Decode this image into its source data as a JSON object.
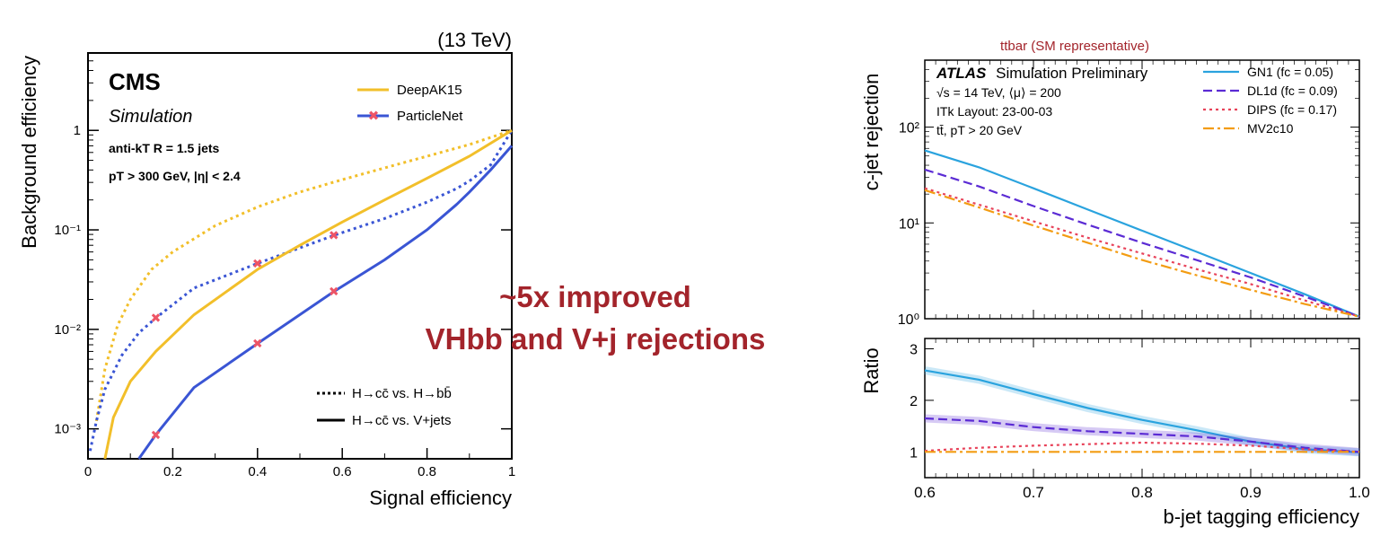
{
  "slide": {
    "overlay_text": [
      "~5x improved",
      "VHbb and V+j rejections"
    ],
    "overlay_color": "#a3242b"
  },
  "left_plot": {
    "energy": "(13 TeV)",
    "experiment": "CMS",
    "subtitle": "Simulation",
    "info": [
      "anti-kT R = 1.5 jets",
      "pT > 300 GeV, |η| < 2.4"
    ],
    "xlabel": "Signal efficiency",
    "ylabel": "Background efficiency",
    "legend": [
      "DeepAK15",
      "ParticleNet"
    ],
    "style_legend": [
      "H→cc̄ vs. H→bb̄",
      "H→cc̄ vs. V+jets"
    ]
  },
  "right_plot": {
    "top_label": "ttbar (SM representative)",
    "top_label_color": "#a3242b",
    "experiment": "ATLAS",
    "experiment_suffix": "Simulation Preliminary",
    "info": [
      "√s = 14 TeV, ⟨μ⟩ = 200",
      "ITk Layout: 23-00-03",
      "tt̄, pT > 20 GeV"
    ],
    "ylabel_top": "c-jet rejection",
    "ylabel_bottom": "Ratio",
    "xlabel": "b-jet tagging efficiency"
  },
  "chart_data": [
    {
      "type": "line",
      "title": "(13 TeV)",
      "xlabel": "Signal efficiency",
      "ylabel": "Background efficiency",
      "xlim": [
        0,
        1
      ],
      "ylim": [
        0.0005,
        6
      ],
      "yscale": "log",
      "xticks": [
        0,
        0.2,
        0.4,
        0.6,
        0.8,
        1
      ],
      "xticklabels": [
        "0",
        "0.2",
        "0.4",
        "0.6",
        "0.8",
        "1"
      ],
      "yticks": [
        0.001,
        0.01,
        0.1,
        1
      ],
      "yticklabels": [
        "10⁻³",
        "10⁻²",
        "10⁻¹",
        "1"
      ],
      "legend_position": "top-right",
      "series": [
        {
          "name": "DeepAK15",
          "style": "dotted",
          "color": "#f2bf2a",
          "x": [
            0.02,
            0.04,
            0.07,
            0.1,
            0.15,
            0.2,
            0.3,
            0.4,
            0.5,
            0.6,
            0.7,
            0.8,
            0.9,
            1.0
          ],
          "y": [
            0.0012,
            0.004,
            0.011,
            0.02,
            0.04,
            0.06,
            0.11,
            0.17,
            0.24,
            0.32,
            0.42,
            0.55,
            0.72,
            1.0
          ]
        },
        {
          "name": "ParticleNet",
          "style": "dotted",
          "color": "#3a55d4",
          "markers": [
            0.16,
            0.4,
            0.58
          ],
          "x": [
            0.005,
            0.02,
            0.04,
            0.08,
            0.12,
            0.16,
            0.25,
            0.4,
            0.58,
            0.7,
            0.8,
            0.87,
            0.9,
            0.95,
            1.0
          ],
          "y": [
            0.0006,
            0.0012,
            0.0025,
            0.0055,
            0.0092,
            0.013,
            0.026,
            0.046,
            0.088,
            0.13,
            0.19,
            0.26,
            0.31,
            0.45,
            1.0
          ]
        },
        {
          "name": "DeepAK15",
          "style": "solid",
          "color": "#f2bf2a",
          "x": [
            0.04,
            0.06,
            0.1,
            0.16,
            0.25,
            0.4,
            0.5,
            0.6,
            0.7,
            0.8,
            0.9,
            1.0
          ],
          "y": [
            0.0005,
            0.0013,
            0.003,
            0.006,
            0.014,
            0.04,
            0.07,
            0.12,
            0.2,
            0.33,
            0.55,
            1.0
          ]
        },
        {
          "name": "ParticleNet",
          "style": "solid",
          "color": "#3a55d4",
          "markers": [
            0.16,
            0.4,
            0.58
          ],
          "x": [
            0.12,
            0.16,
            0.25,
            0.4,
            0.58,
            0.7,
            0.8,
            0.87,
            0.9,
            0.95,
            1.0
          ],
          "y": [
            0.0005,
            0.00087,
            0.0026,
            0.0072,
            0.024,
            0.05,
            0.1,
            0.18,
            0.24,
            0.4,
            0.7
          ]
        }
      ]
    },
    {
      "type": "line",
      "xlabel": "b-jet tagging efficiency",
      "ylabel": "c-jet rejection",
      "xlim": [
        0.6,
        1.0
      ],
      "ylim": [
        1,
        500
      ],
      "yscale": "log",
      "xticks": [
        0.6,
        0.7,
        0.8,
        0.9,
        1.0
      ],
      "xticklabels": [
        "0.6",
        "0.7",
        "0.8",
        "0.9",
        "1.0"
      ],
      "yticks": [
        1,
        10,
        100
      ],
      "yticklabels": [
        "10⁰",
        "10¹",
        "10²"
      ],
      "legend_position": "top-right",
      "series": [
        {
          "name": "GN1 (fc = 0.05)",
          "style": "solid",
          "color": "#2aa3de",
          "x": [
            0.6,
            0.65,
            0.7,
            0.75,
            0.8,
            0.85,
            0.9,
            0.95,
            1.0
          ],
          "y": [
            57,
            38,
            23,
            13.8,
            8.3,
            5.0,
            3.0,
            1.8,
            1.05
          ]
        },
        {
          "name": "DL1d (fc = 0.09)",
          "style": "dashed",
          "color": "#5b2bd4",
          "x": [
            0.6,
            0.65,
            0.7,
            0.75,
            0.8,
            0.85,
            0.9,
            0.95,
            1.0
          ],
          "y": [
            36,
            24,
            15,
            9.6,
            6.2,
            4.1,
            2.7,
            1.7,
            1.05
          ]
        },
        {
          "name": "DIPS (fc = 0.17)",
          "style": "dotted",
          "color": "#e8435a",
          "x": [
            0.6,
            0.65,
            0.7,
            0.75,
            0.8,
            0.85,
            0.9,
            0.95,
            1.0
          ],
          "y": [
            23,
            15.5,
            10.4,
            7.0,
            4.8,
            3.3,
            2.3,
            1.55,
            1.05
          ]
        },
        {
          "name": "MV2c10",
          "style": "dashdot",
          "color": "#f39c12",
          "x": [
            0.6,
            0.65,
            0.7,
            0.75,
            0.8,
            0.85,
            0.9,
            0.95,
            1.0
          ],
          "y": [
            22,
            14.5,
            9.4,
            6.2,
            4.1,
            2.85,
            2.0,
            1.42,
            1.05
          ]
        }
      ]
    },
    {
      "type": "line",
      "xlabel": "b-jet tagging efficiency",
      "ylabel": "Ratio",
      "xlim": [
        0.6,
        1.0
      ],
      "ylim": [
        0.5,
        3.2
      ],
      "xticks": [
        0.6,
        0.7,
        0.8,
        0.9,
        1.0
      ],
      "xticklabels": [
        "0.6",
        "0.7",
        "0.8",
        "0.9",
        "1.0"
      ],
      "yticks": [
        1,
        2,
        3
      ],
      "yticklabels": [
        "1",
        "2",
        "3"
      ],
      "series": [
        {
          "name": "GN1 (fc = 0.05)",
          "style": "solid",
          "color": "#2aa3de",
          "x": [
            0.6,
            0.65,
            0.7,
            0.75,
            0.8,
            0.85,
            0.9,
            0.95,
            1.0
          ],
          "y": [
            2.58,
            2.4,
            2.12,
            1.85,
            1.62,
            1.42,
            1.2,
            1.05,
            0.99
          ]
        },
        {
          "name": "DL1d (fc = 0.09)",
          "style": "dashed",
          "color": "#5b2bd4",
          "x": [
            0.6,
            0.65,
            0.7,
            0.75,
            0.8,
            0.85,
            0.9,
            0.95,
            1.0
          ],
          "y": [
            1.65,
            1.6,
            1.48,
            1.4,
            1.35,
            1.3,
            1.2,
            1.08,
            1.0
          ]
        },
        {
          "name": "DIPS (fc = 0.17)",
          "style": "dotted",
          "color": "#e8435a",
          "x": [
            0.6,
            0.65,
            0.7,
            0.75,
            0.8,
            0.85,
            0.9,
            0.95,
            1.0
          ],
          "y": [
            1.02,
            1.08,
            1.12,
            1.15,
            1.18,
            1.16,
            1.12,
            1.05,
            1.0
          ]
        },
        {
          "name": "MV2c10",
          "style": "dashdot",
          "color": "#f39c12",
          "x": [
            0.6,
            0.7,
            0.8,
            0.9,
            1.0
          ],
          "y": [
            1.0,
            1.0,
            1.0,
            1.0,
            1.0
          ]
        }
      ]
    }
  ]
}
